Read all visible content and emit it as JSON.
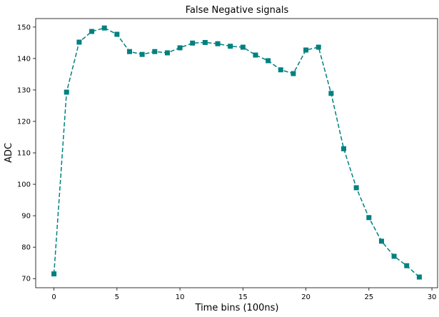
{
  "chart_data": {
    "type": "line",
    "title": "False Negative signals",
    "xlabel": "Time bins (100ns)",
    "ylabel": "ADC",
    "xlim": [
      -1.45,
      30.45
    ],
    "ylim": [
      67.1,
      152.7
    ],
    "xticks": [
      0,
      5,
      10,
      15,
      20,
      25,
      30
    ],
    "yticks": [
      70,
      80,
      90,
      100,
      110,
      120,
      130,
      140,
      150
    ],
    "grid": false,
    "series": [
      {
        "marker": "square",
        "linestyle": "dashed",
        "color": "#008080",
        "x": [
          0,
          1,
          2,
          3,
          4,
          5,
          6,
          7,
          8,
          9,
          10,
          11,
          12,
          13,
          14,
          15,
          16,
          17,
          18,
          19,
          20,
          21,
          22,
          23,
          24,
          25,
          26,
          27,
          28,
          29
        ],
        "y": [
          71.5,
          129.3,
          145.2,
          148.6,
          149.7,
          147.7,
          142.2,
          141.3,
          142.2,
          141.8,
          143.4,
          144.9,
          145.1,
          144.7,
          143.9,
          143.6,
          141.1,
          139.3,
          136.4,
          135.2,
          142.7,
          143.6,
          128.9,
          111.3,
          98.9,
          89.4,
          81.9,
          77.1,
          74.1,
          70.5
        ]
      }
    ]
  }
}
